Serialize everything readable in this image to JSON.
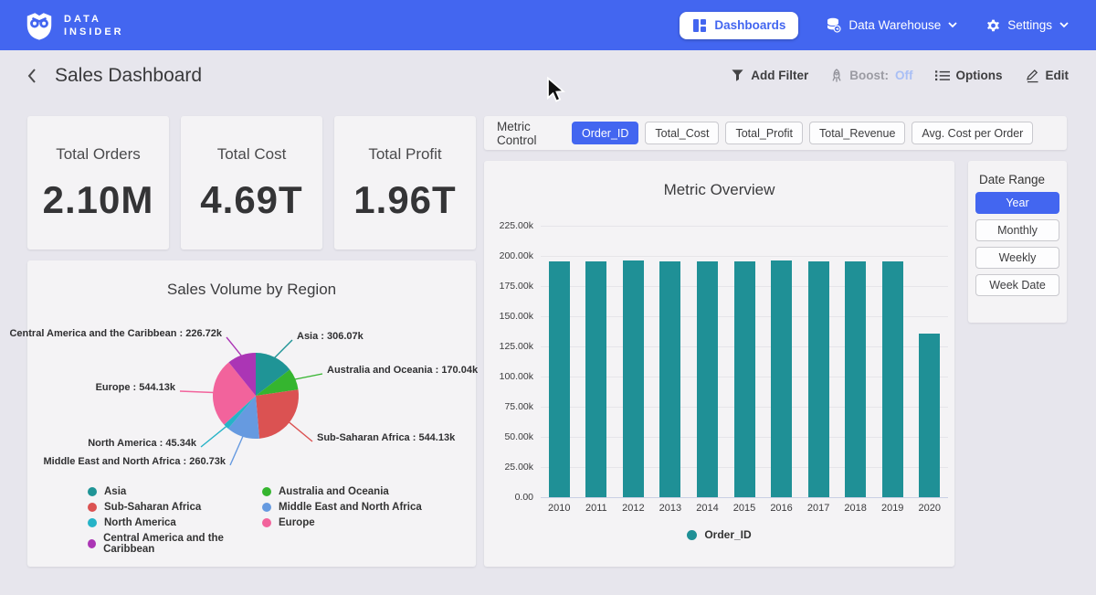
{
  "navbar": {
    "brand_line1": "DATA",
    "brand_line2": "INSIDER",
    "dashboards_label": "Dashboards",
    "data_warehouse_label": "Data Warehouse",
    "settings_label": "Settings"
  },
  "header": {
    "title": "Sales Dashboard",
    "add_filter_label": "Add Filter",
    "boost_label": "Boost:",
    "boost_value": "Off",
    "options_label": "Options",
    "edit_label": "Edit"
  },
  "kpis": [
    {
      "label": "Total Orders",
      "value": "2.10M"
    },
    {
      "label": "Total Cost",
      "value": "4.69T"
    },
    {
      "label": "Total Profit",
      "value": "1.96T"
    }
  ],
  "metric_control": {
    "label": "Metric Control",
    "options": [
      "Order_ID",
      "Total_Cost",
      "Total_Profit",
      "Total_Revenue",
      "Avg. Cost per Order"
    ],
    "selected": "Order_ID"
  },
  "date_range": {
    "label": "Date Range",
    "options": [
      "Year",
      "Monthly",
      "Weekly",
      "Week Date"
    ],
    "selected": "Year"
  },
  "colors": {
    "accent_blue": "#4366f0",
    "bar_teal": "#1f9096",
    "page_bg": "#e7e6ed",
    "panel_bg": "#f4f3f5"
  },
  "chart_data": [
    {
      "type": "bar",
      "title": "Metric Overview",
      "categories": [
        "2010",
        "2011",
        "2012",
        "2013",
        "2014",
        "2015",
        "2016",
        "2017",
        "2018",
        "2019",
        "2020"
      ],
      "series": [
        {
          "name": "Order_ID",
          "color": "#1f9096",
          "values": [
            195300,
            195200,
            196300,
            195400,
            195200,
            195400,
            196300,
            195500,
            195300,
            195500,
            135800
          ]
        }
      ],
      "ylim": [
        0,
        225000
      ],
      "y_ticks": [
        "0.00",
        "25.00k",
        "50.00k",
        "75.00k",
        "100.00k",
        "125.00k",
        "150.00k",
        "175.00k",
        "200.00k",
        "225.00k"
      ],
      "grid": true,
      "legend_position": "bottom"
    },
    {
      "type": "pie",
      "title": "Sales Volume by Region",
      "slices": [
        {
          "label": "Asia",
          "value": 306070,
          "value_label": "306.07k",
          "color": "#1f9496"
        },
        {
          "label": "Australia and Oceania",
          "value": 170040,
          "value_label": "170.04k",
          "color": "#35b52f"
        },
        {
          "label": "Sub-Saharan Africa",
          "value": 544130,
          "value_label": "544.13k",
          "color": "#db5252"
        },
        {
          "label": "Middle East and North Africa",
          "value": 260730,
          "value_label": "260.73k",
          "color": "#669ae0"
        },
        {
          "label": "North America",
          "value": 45340,
          "value_label": "45.34k",
          "color": "#26b3c7"
        },
        {
          "label": "Europe",
          "value": 544130,
          "value_label": "544.13k",
          "color": "#f2639c"
        },
        {
          "label": "Central America and the Caribbean",
          "value": 226720,
          "value_label": "226.72k",
          "color": "#ab35b5"
        }
      ],
      "legend_columns": [
        [
          "Asia",
          "Sub-Saharan Africa",
          "North America",
          "Central America and the Caribbean"
        ],
        [
          "Australia and Oceania",
          "Middle East and North Africa",
          "Europe"
        ]
      ],
      "legend_position": "bottom"
    }
  ]
}
